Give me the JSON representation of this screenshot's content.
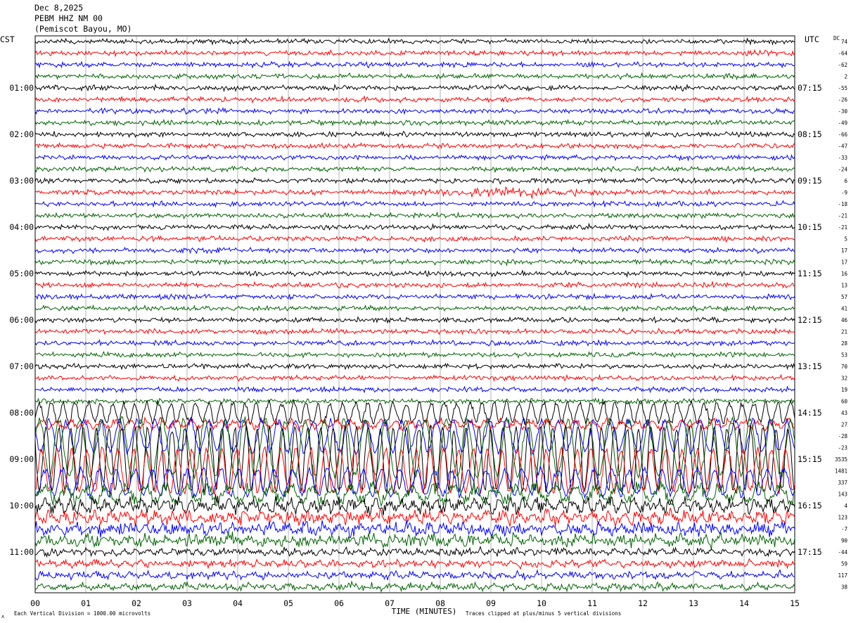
{
  "header": {
    "date": "Dec 8,2025",
    "station": "PEBM HHZ NM 00",
    "location": "(Pemiscot Bayou, MO)"
  },
  "left_axis_label": "CST",
  "right_axis_label": "UTC",
  "dc_label": "DC",
  "footer": {
    "scale_note": "Each Vertical Division = 1000.00 microvolts",
    "xlabel": "TIME (MINUTES)",
    "clip_note": "Traces clipped at plus/minus 5 vertical divisions",
    "corner_mark": "ʌ"
  },
  "colors": {
    "cycle": [
      "#000000",
      "#ff0000",
      "#0000ff",
      "#006400"
    ],
    "grid": "#808080",
    "background": "#ffffff"
  },
  "chart_data": {
    "type": "line",
    "title": "PEBM HHZ NM 00",
    "xlabel": "TIME (MINUTES)",
    "xlim": [
      0,
      15
    ],
    "x_ticks": [
      "00",
      "01",
      "02",
      "03",
      "04",
      "05",
      "06",
      "07",
      "08",
      "09",
      "10",
      "11",
      "12",
      "13",
      "14",
      "15"
    ],
    "grid": true,
    "rows_per_hour": 4,
    "minutes_per_row": 15,
    "left_ticks": [
      "01:00",
      "02:00",
      "03:00",
      "04:00",
      "05:00",
      "06:00",
      "07:00",
      "08:00",
      "09:00",
      "10:00",
      "11:00"
    ],
    "right_ticks": [
      "07:15",
      "08:15",
      "09:15",
      "10:15",
      "11:15",
      "12:15",
      "13:15",
      "14:15",
      "15:15",
      "16:15",
      "17:15"
    ],
    "tick_rows": [
      4,
      8,
      12,
      16,
      20,
      24,
      28,
      32,
      36,
      40,
      44
    ],
    "dc_offsets": [
      "74",
      "-64",
      "-62",
      "2",
      "-55",
      "-26",
      "-30",
      "-49",
      "-66",
      "-47",
      "-33",
      "-24",
      "6",
      "-9",
      "-18",
      "-21",
      "-21",
      "5",
      "17",
      "17",
      "16",
      "13",
      "57",
      "41",
      "46",
      "21",
      "28",
      "53",
      "70",
      "32",
      "19",
      "60",
      "43",
      "27",
      "-28",
      "-23",
      "3535",
      "1481",
      "337",
      "143",
      "4",
      "123",
      "-7",
      "90",
      "-44",
      "59",
      "117",
      "38"
    ],
    "event_row": 13,
    "event_minutes": [
      7.0,
      11.5
    ],
    "active_rows_start": 32,
    "clip_divisions": 5,
    "microvolts_per_division": 1000.0
  }
}
